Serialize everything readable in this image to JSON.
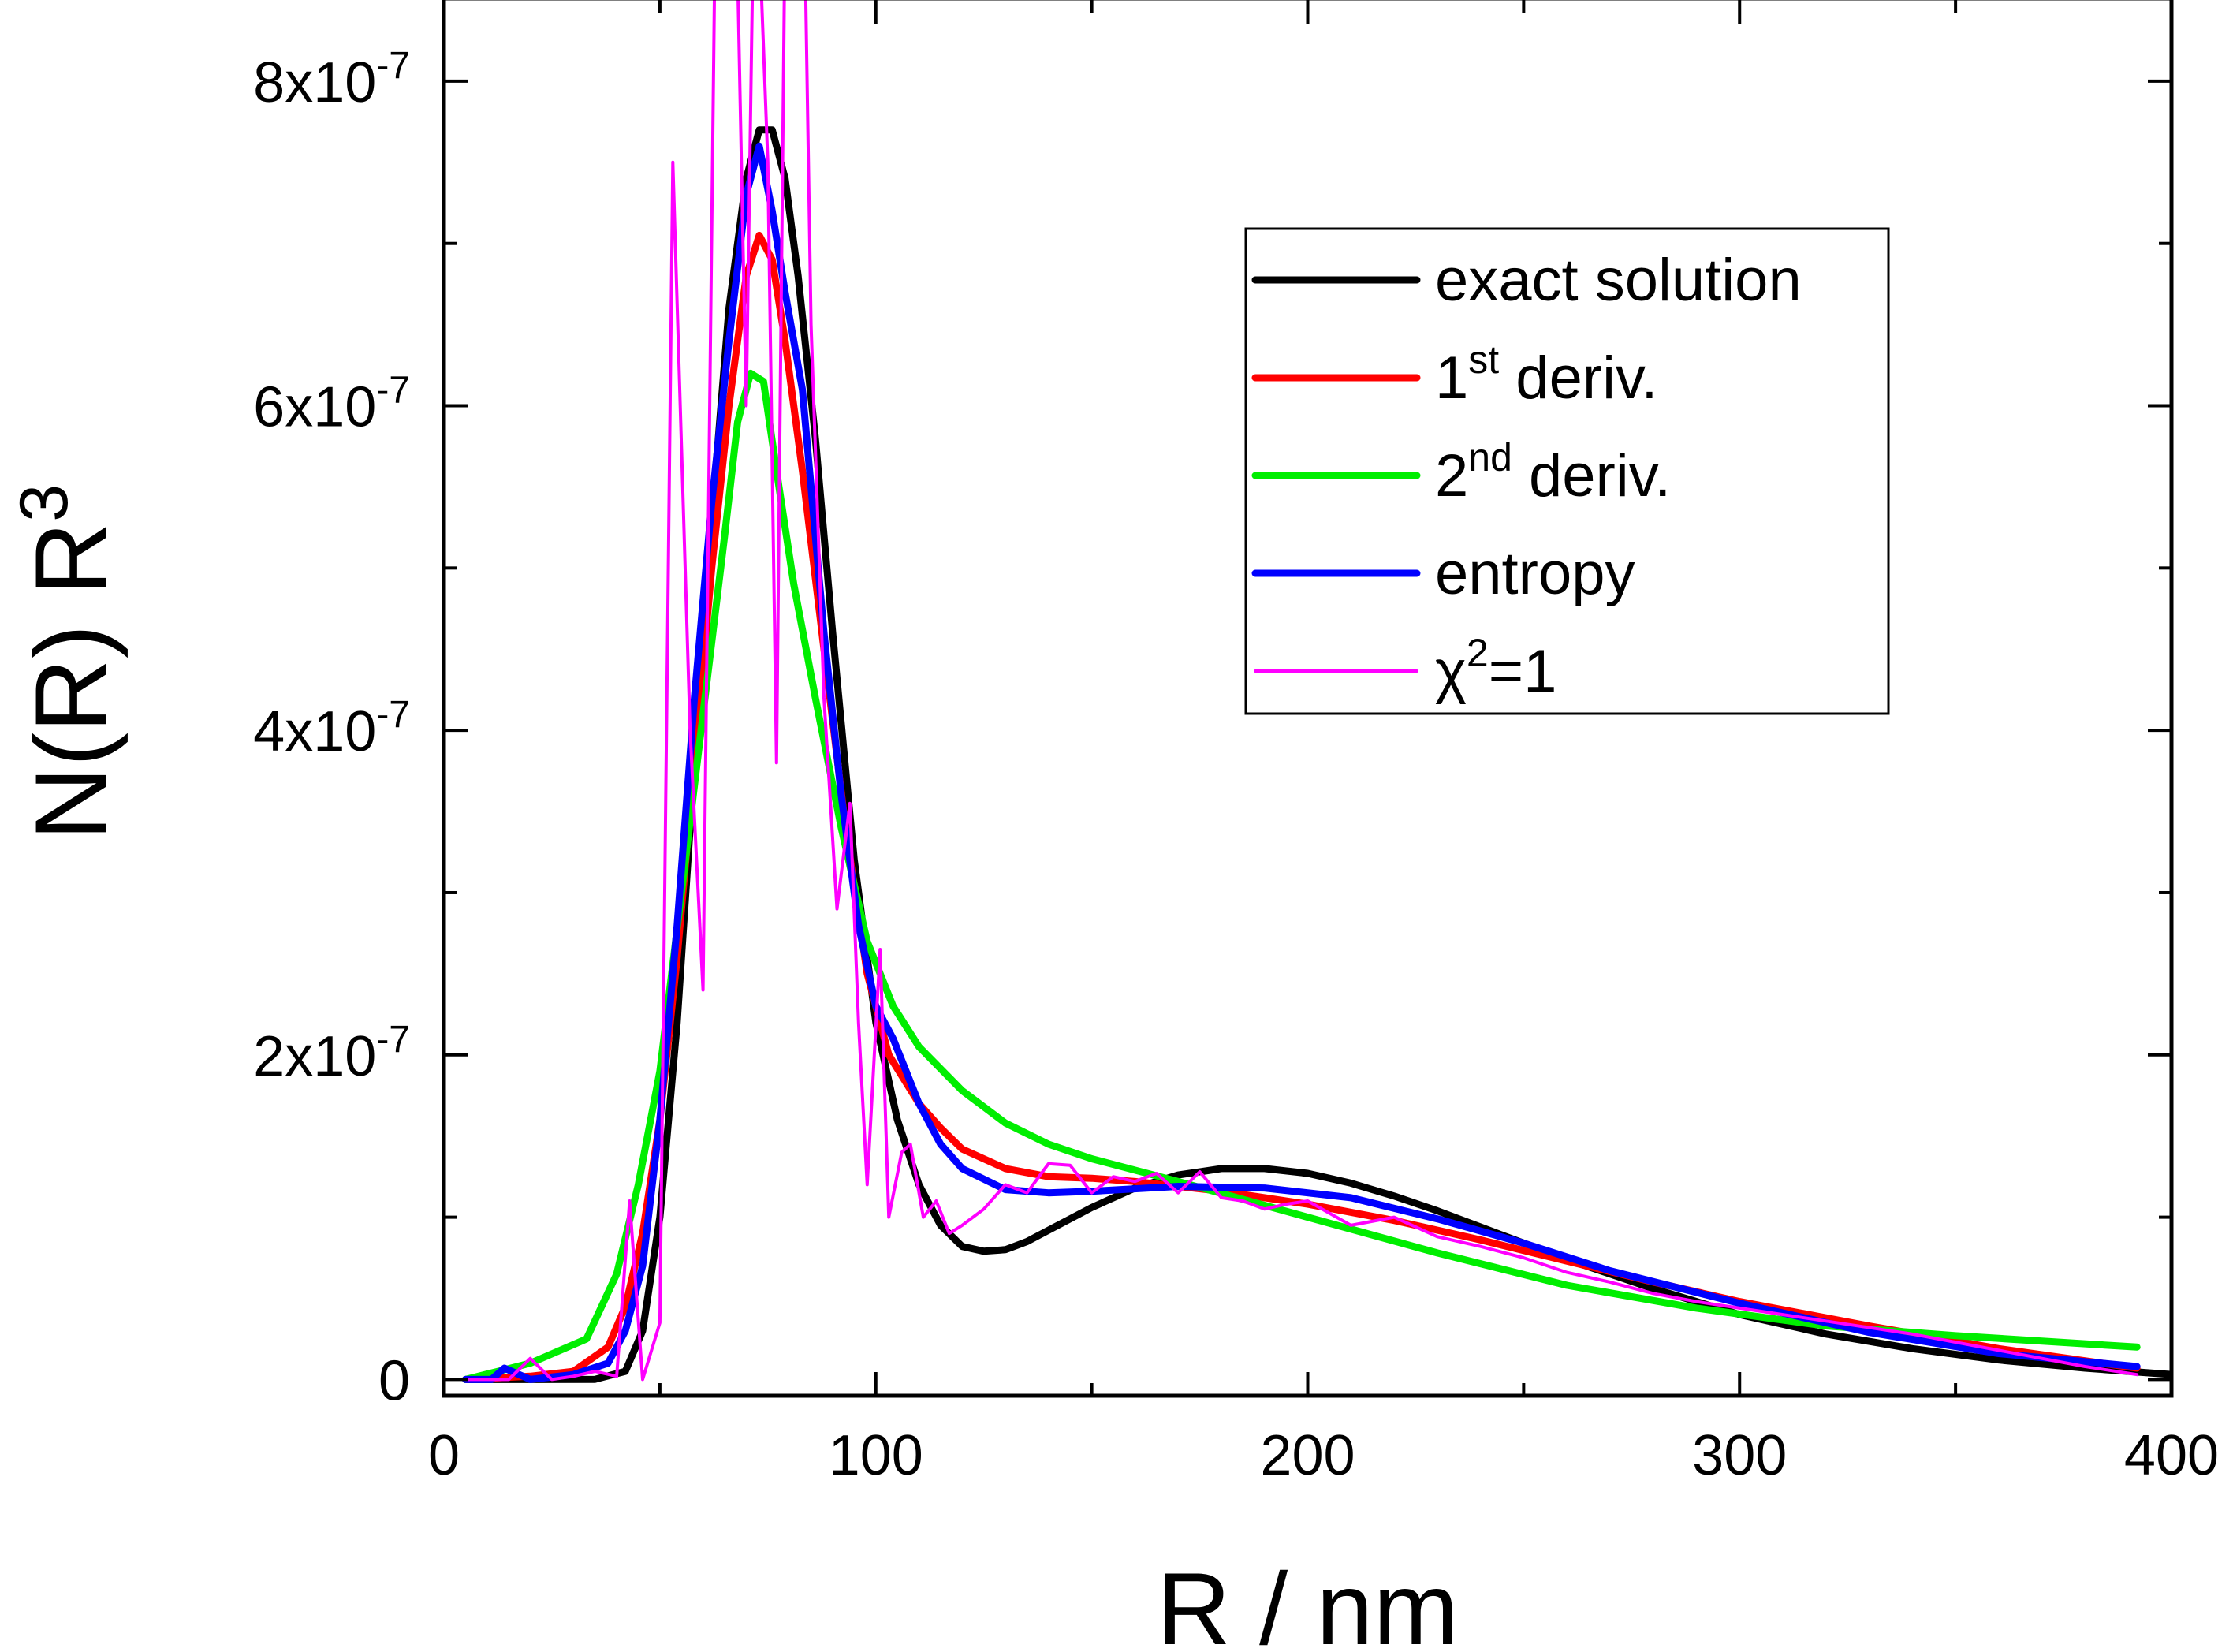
{
  "chart_data": {
    "type": "line",
    "title": "",
    "xlabel": "R / nm",
    "ylabel": "N(R) R",
    "ylabel_superscript": "3",
    "xlim": [
      0,
      400
    ],
    "ylim": [
      -1e-08,
      8.5e-07
    ],
    "grid": false,
    "legend_position": "top-right",
    "x_ticks": [
      {
        "value": 0,
        "label": "0"
      },
      {
        "value": 100,
        "label": "100"
      },
      {
        "value": 200,
        "label": "200"
      },
      {
        "value": 300,
        "label": "300"
      },
      {
        "value": 400,
        "label": "400"
      }
    ],
    "y_ticks": [
      {
        "value": 0,
        "label": "0",
        "exp": ""
      },
      {
        "value": 2e-07,
        "label": "2x10",
        "exp": "-7"
      },
      {
        "value": 4e-07,
        "label": "4x10",
        "exp": "-7"
      },
      {
        "value": 6e-07,
        "label": "6x10",
        "exp": "-7"
      },
      {
        "value": 8e-07,
        "label": "8x10",
        "exp": "-7"
      }
    ],
    "x_minor_ticks": [
      50,
      150,
      250,
      350
    ],
    "y_minor_ticks": [
      1e-07,
      3e-07,
      5e-07,
      7e-07
    ],
    "series": [
      {
        "name": "exact solution",
        "legend_main": "exact solution",
        "legend_sup": "",
        "legend_tail": "",
        "color": "#000000",
        "width": 9,
        "x": [
          5,
          20,
          35,
          42,
          46,
          50,
          54,
          58,
          62,
          66,
          70,
          73,
          76,
          79,
          82,
          86,
          90,
          95,
          100,
          105,
          110,
          115,
          120,
          125,
          130,
          135,
          140,
          150,
          160,
          170,
          180,
          190,
          200,
          210,
          220,
          230,
          240,
          250,
          260,
          270,
          280,
          290,
          300,
          320,
          340,
          360,
          380,
          400
        ],
        "y": [
          0.0,
          0.0,
          1e-10,
          5e-09,
          3e-08,
          1e-07,
          2.2e-07,
          3.8e-07,
          5.3e-07,
          6.6e-07,
          7.4e-07,
          7.7e-07,
          7.7e-07,
          7.4e-07,
          6.8e-07,
          5.8e-07,
          4.6e-07,
          3.2e-07,
          2.2e-07,
          1.6e-07,
          1.2e-07,
          9.5e-08,
          8.2e-08,
          7.9e-08,
          8e-08,
          8.5e-08,
          9.2e-08,
          1.06e-07,
          1.18e-07,
          1.26e-07,
          1.3e-07,
          1.3e-07,
          1.27e-07,
          1.21e-07,
          1.13e-07,
          1.04e-07,
          9.4e-08,
          8.4e-08,
          7.4e-08,
          6.5e-08,
          5.6e-08,
          4.8e-08,
          4e-08,
          2.8e-08,
          1.9e-08,
          1.2e-08,
          7e-09,
          3e-09
        ]
      },
      {
        "name": "1st deriv.",
        "legend_main": "1",
        "legend_sup": "st",
        "legend_tail": " deriv.",
        "color": "#ff0000",
        "width": 9,
        "x": [
          5,
          20,
          30,
          38,
          42,
          46,
          50,
          54,
          58,
          62,
          66,
          70,
          73,
          76,
          79,
          83,
          88,
          93,
          98,
          103,
          110,
          115,
          120,
          130,
          140,
          150,
          160,
          180,
          200,
          220,
          240,
          260,
          280,
          300,
          330,
          360,
          392
        ],
        "y": [
          0.0,
          2e-09,
          5e-09,
          2e-08,
          4.5e-08,
          9e-08,
          1.6e-07,
          2.6e-07,
          3.8e-07,
          5e-07,
          6e-07,
          6.8e-07,
          7.05e-07,
          6.9e-07,
          6.4e-07,
          5.6e-07,
          4.5e-07,
          3.4e-07,
          2.5e-07,
          2e-07,
          1.7e-07,
          1.55e-07,
          1.42e-07,
          1.3e-07,
          1.25e-07,
          1.24e-07,
          1.22e-07,
          1.16e-07,
          1.08e-07,
          9.8e-08,
          8.6e-08,
          7.3e-08,
          6e-08,
          4.8e-08,
          3.3e-08,
          1.9e-08,
          7e-09
        ]
      },
      {
        "name": "2nd deriv.",
        "legend_main": "2",
        "legend_sup": "nd",
        "legend_tail": " deriv.",
        "color": "#00ee00",
        "width": 9,
        "x": [
          5,
          20,
          33,
          40,
          45,
          50,
          55,
          60,
          65,
          68,
          71,
          74,
          77,
          81,
          86,
          92,
          98,
          104,
          110,
          120,
          130,
          140,
          150,
          170,
          200,
          230,
          260,
          290,
          320,
          350,
          392
        ],
        "y": [
          0.0,
          1e-08,
          2.5e-08,
          6.5e-08,
          1.2e-07,
          1.9e-07,
          3e-07,
          4.1e-07,
          5.2e-07,
          5.9e-07,
          6.2e-07,
          6.15e-07,
          5.6e-07,
          4.9e-07,
          4.2e-07,
          3.4e-07,
          2.7e-07,
          2.3e-07,
          2.05e-07,
          1.78e-07,
          1.58e-07,
          1.45e-07,
          1.36e-07,
          1.22e-07,
          1e-07,
          7.8e-08,
          5.8e-08,
          4.4e-08,
          3.3e-08,
          2.7e-08,
          2e-08
        ]
      },
      {
        "name": "entropy",
        "legend_main": "entropy",
        "legend_sup": "",
        "legend_tail": "",
        "color": "#0000ff",
        "width": 9,
        "x": [
          5,
          11,
          14,
          20,
          30,
          38,
          42,
          46,
          50,
          54,
          58,
          62,
          66,
          70,
          73,
          76,
          79,
          83,
          88,
          92,
          96,
          100,
          104,
          110,
          115,
          120,
          130,
          140,
          150,
          170,
          190,
          210,
          230,
          250,
          270,
          300,
          330,
          360,
          392
        ],
        "y": [
          0.0,
          0.0,
          7e-09,
          0.0,
          3e-09,
          1e-08,
          3e-08,
          7e-08,
          1.6e-07,
          2.8e-07,
          4.2e-07,
          5.4e-07,
          6.4e-07,
          7.3e-07,
          7.6e-07,
          7.2e-07,
          6.7e-07,
          6.1e-07,
          4.6e-07,
          3.6e-07,
          2.8e-07,
          2.3e-07,
          2.1e-07,
          1.7e-07,
          1.45e-07,
          1.3e-07,
          1.17e-07,
          1.15e-07,
          1.16e-07,
          1.19e-07,
          1.18e-07,
          1.12e-07,
          9.9e-08,
          8.4e-08,
          6.7e-08,
          4.7e-08,
          2.9e-08,
          1.6e-08,
          8e-09
        ]
      },
      {
        "name": "χ²=1",
        "legend_main": "χ",
        "legend_sup": "2",
        "legend_tail": "=1",
        "color": "#ff00ff",
        "width": 4,
        "x": [
          5,
          15,
          20,
          25,
          30,
          35,
          40,
          43,
          46,
          50,
          53,
          57,
          60,
          63,
          67,
          70,
          72,
          75,
          77,
          79,
          81,
          83,
          85,
          88,
          91,
          94,
          96,
          98,
          101,
          103,
          106,
          108,
          111,
          114,
          117,
          120,
          125,
          130,
          135,
          140,
          145,
          150,
          155,
          160,
          165,
          170,
          175,
          180,
          185,
          190,
          195,
          200,
          210,
          220,
          230,
          240,
          250,
          260,
          270,
          280,
          290,
          300,
          320,
          340,
          360,
          380,
          392
        ],
        "y": [
          0.0,
          0.0,
          1.3e-08,
          0.0,
          2e-09,
          5e-09,
          2e-09,
          1.1e-07,
          0.0,
          3.5e-08,
          7.5e-07,
          4e-07,
          2.4e-07,
          9.4e-07,
          1e-06,
          6e-07,
          9.6e-07,
          7.5e-07,
          3.8e-07,
          9e-07,
          1e-06,
          9.8e-07,
          6.5e-07,
          4.2e-07,
          2.9e-07,
          3.55e-07,
          2.2e-07,
          1.2e-07,
          2.65e-07,
          1e-07,
          1.4e-07,
          1.45e-07,
          1e-07,
          1.1e-07,
          9e-08,
          9.5e-08,
          1.05e-07,
          1.2e-07,
          1.15e-07,
          1.33e-07,
          1.32e-07,
          1.15e-07,
          1.25e-07,
          1.22e-07,
          1.27e-07,
          1.15e-07,
          1.28e-07,
          1.12e-07,
          1.1e-07,
          1.05e-07,
          1.08e-07,
          1.1e-07,
          9.5e-08,
          1e-07,
          8.8e-08,
          8.2e-08,
          7.5e-08,
          6.6e-08,
          6e-08,
          5.3e-08,
          4.8e-08,
          4.4e-08,
          3.6e-08,
          2.8e-08,
          1.8e-08,
          8e-09,
          3e-09
        ]
      }
    ]
  }
}
